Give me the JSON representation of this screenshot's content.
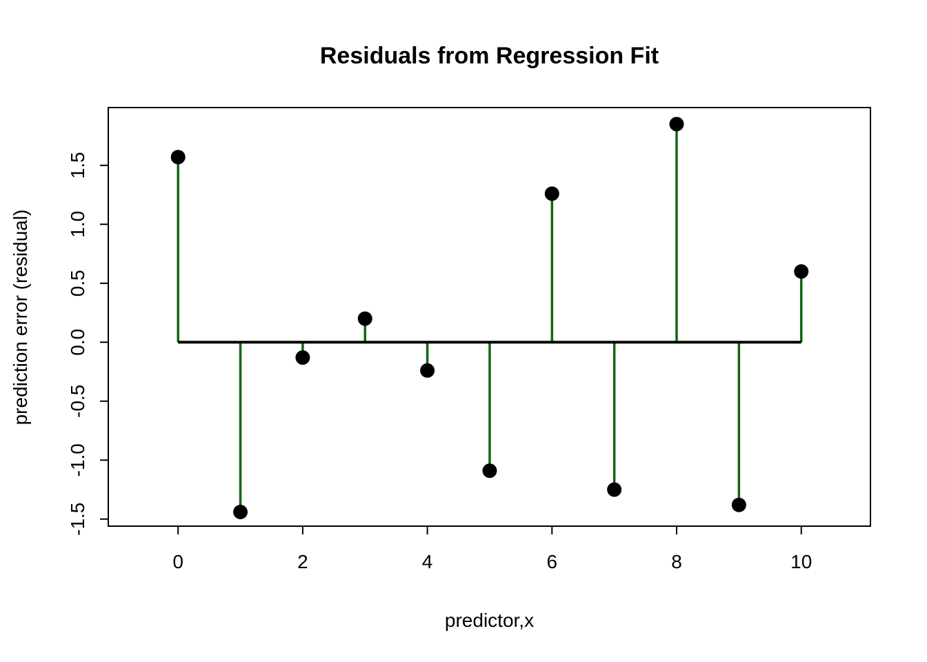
{
  "chart_data": {
    "type": "stem",
    "title": "Residuals from Regression Fit",
    "xlabel": "predictor,x",
    "ylabel": "prediction error (residual)",
    "x": [
      0,
      1,
      2,
      3,
      4,
      5,
      6,
      7,
      8,
      9,
      10
    ],
    "residuals": [
      1.57,
      -1.44,
      -0.13,
      0.2,
      -0.24,
      -1.09,
      1.26,
      -1.25,
      1.85,
      -1.38,
      0.6
    ],
    "x_ticks": [
      0,
      2,
      4,
      6,
      8,
      10
    ],
    "x_tick_labels": [
      "0",
      "2",
      "4",
      "6",
      "8",
      "10"
    ],
    "y_ticks": [
      -1.5,
      -1.0,
      -0.5,
      0.0,
      0.5,
      1.0,
      1.5
    ],
    "y_tick_labels": [
      "-1.5",
      "-1.0",
      "-0.5",
      "0.0",
      "0.5",
      "1.0",
      "1.5"
    ],
    "xlim": [
      -1.12,
      11.11
    ],
    "ylim": [
      -1.56,
      1.99
    ],
    "baseline": 0,
    "baseline_span": [
      0,
      10
    ],
    "grid": false,
    "legend": null,
    "colors": {
      "stem": "#146414",
      "point": "#000000",
      "baseline": "#000000",
      "axis": "#000000",
      "background": "#ffffff"
    }
  }
}
